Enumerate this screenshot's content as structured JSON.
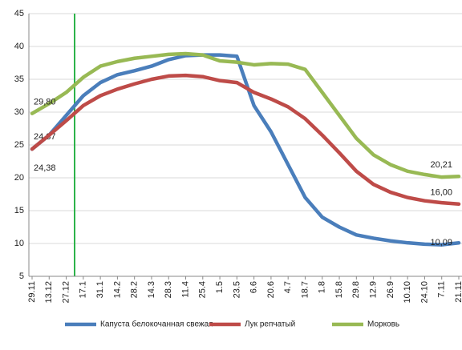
{
  "chart_data": {
    "type": "line",
    "categories": [
      "29.11",
      "13.12",
      "27.12",
      "17.1",
      "31.1",
      "14.2",
      "28.2",
      "14.3",
      "28.3",
      "11.4",
      "25.4",
      "1.5",
      "23.5",
      "6.6",
      "20.6",
      "4.7",
      "18.7",
      "1.8",
      "15.8",
      "29.8",
      "12.9",
      "26.9",
      "10.10",
      "24.10",
      "7.11",
      "21.11"
    ],
    "series": [
      {
        "name": "Капуста белокочанная свежая",
        "color": "#4a7ebb",
        "values": [
          24.37,
          26.5,
          29.5,
          32.5,
          34.5,
          35.7,
          36.3,
          37,
          38,
          38.6,
          38.7,
          38.7,
          38.5,
          31,
          27,
          22,
          17,
          14,
          12.5,
          11.3,
          10.8,
          10.4,
          10.1,
          9.9,
          9.8,
          10.09
        ],
        "value_labels": [
          "24,37",
          null,
          null,
          null,
          null,
          null,
          null,
          null,
          null,
          null,
          null,
          null,
          null,
          null,
          null,
          null,
          null,
          null,
          null,
          null,
          null,
          null,
          null,
          null,
          null,
          "10,09"
        ]
      },
      {
        "name": "Лук репчатый",
        "color": "#be4b48",
        "values": [
          24.38,
          26.5,
          28.7,
          31,
          32.5,
          33.5,
          34.3,
          35,
          35.5,
          35.6,
          35.4,
          34.8,
          34.5,
          33,
          32,
          30.8,
          29,
          26.5,
          23.8,
          21,
          19,
          17.8,
          17,
          16.5,
          16.2,
          16.0
        ],
        "value_labels": [
          "24,38",
          null,
          null,
          null,
          null,
          null,
          null,
          null,
          null,
          null,
          null,
          null,
          null,
          null,
          null,
          null,
          null,
          null,
          null,
          null,
          null,
          null,
          null,
          null,
          null,
          "16,00"
        ]
      },
      {
        "name": "Морковь",
        "color": "#98b954",
        "values": [
          29.8,
          31.3,
          33,
          35.3,
          37,
          37.7,
          38.2,
          38.5,
          38.8,
          38.9,
          38.7,
          37.8,
          37.6,
          37.2,
          37.4,
          37.3,
          36.5,
          33,
          29.5,
          26,
          23.5,
          22,
          21,
          20.5,
          20.1,
          20.21
        ],
        "value_labels": [
          "29,80",
          null,
          null,
          null,
          null,
          null,
          null,
          null,
          null,
          null,
          null,
          null,
          null,
          null,
          null,
          null,
          null,
          null,
          null,
          null,
          null,
          null,
          null,
          null,
          null,
          "20,21"
        ]
      }
    ],
    "ylim": [
      5,
      45
    ],
    "yticks": [
      5,
      10,
      15,
      20,
      25,
      30,
      35,
      40,
      45
    ],
    "grid": true,
    "legend": "bottom"
  }
}
